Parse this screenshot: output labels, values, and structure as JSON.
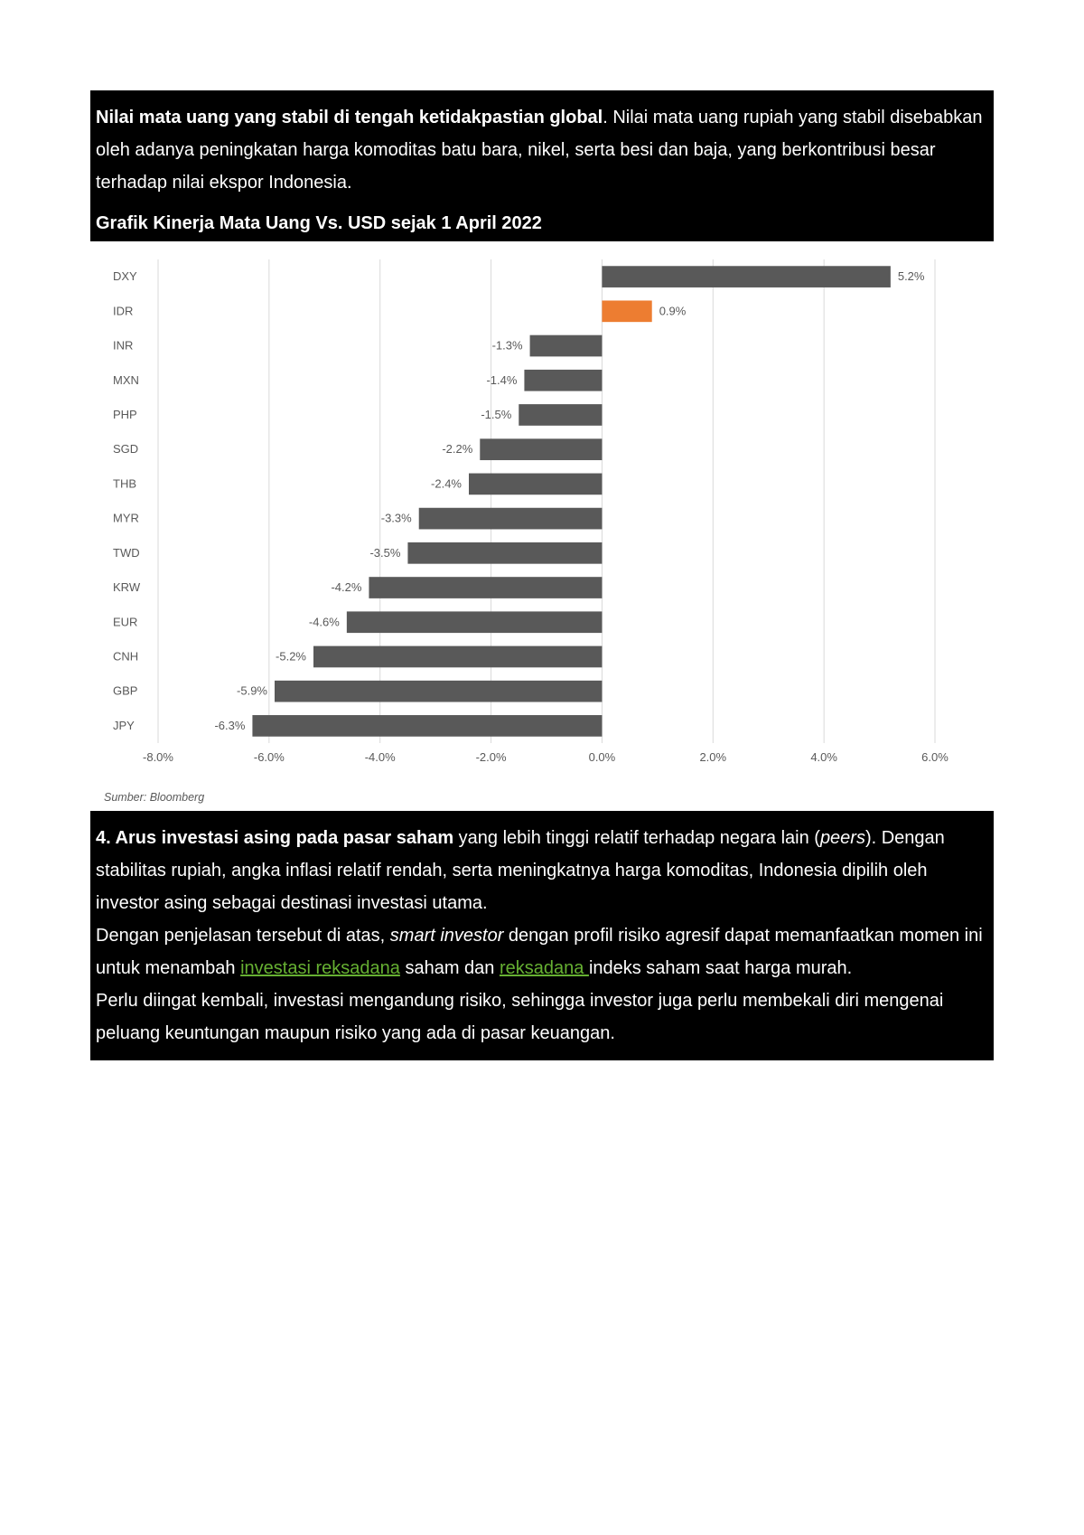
{
  "intro": {
    "bold_lead": " Nilai mata uang yang stabil di tengah ketidakpastian global",
    "rest": ".  Nilai mata uang rupiah yang stabil disebabkan oleh adanya peningkatan harga komoditas batu bara, nikel, serta besi dan baja, yang berkontribusi besar terhadap nilai ekspor Indonesia."
  },
  "chart_title": "Grafik Kinerja Mata Uang Vs. USD sejak 1 April 2022",
  "chart": {
    "type": "horizontal_bar",
    "x_min": -8.0,
    "x_max": 6.0,
    "x_tick_step": 2.0,
    "x_ticks": [
      -8.0,
      -6.0,
      -4.0,
      -2.0,
      0.0,
      2.0,
      4.0,
      6.0
    ],
    "x_tick_labels": [
      "-8.0%",
      "-6.0%",
      "-4.0%",
      "-2.0%",
      "0.0%",
      "2.0%",
      "4.0%",
      "6.0%"
    ],
    "bar_default_color": "#595959",
    "bar_highlight_color": "#ed7d31",
    "grid_color": "#d9d9d9",
    "background_color": "#ffffff",
    "label_fontsize": 13,
    "label_color": "#595959",
    "bar_height_ratio": 0.62,
    "series": [
      {
        "label": "DXY",
        "value": 5.2,
        "value_label": "5.2%",
        "color": "#595959"
      },
      {
        "label": "IDR",
        "value": 0.9,
        "value_label": "0.9%",
        "color": "#ed7d31"
      },
      {
        "label": "INR",
        "value": -1.3,
        "value_label": "-1.3%",
        "color": "#595959"
      },
      {
        "label": "MXN",
        "value": -1.4,
        "value_label": "-1.4%",
        "color": "#595959"
      },
      {
        "label": "PHP",
        "value": -1.5,
        "value_label": "-1.5%",
        "color": "#595959"
      },
      {
        "label": "SGD",
        "value": -2.2,
        "value_label": "-2.2%",
        "color": "#595959"
      },
      {
        "label": "THB",
        "value": -2.4,
        "value_label": "-2.4%",
        "color": "#595959"
      },
      {
        "label": "MYR",
        "value": -3.3,
        "value_label": "-3.3%",
        "color": "#595959"
      },
      {
        "label": "TWD",
        "value": -3.5,
        "value_label": "-3.5%",
        "color": "#595959"
      },
      {
        "label": "KRW",
        "value": -4.2,
        "value_label": "-4.2%",
        "color": "#595959"
      },
      {
        "label": "EUR",
        "value": -4.6,
        "value_label": "-4.6%",
        "color": "#595959"
      },
      {
        "label": "CNH",
        "value": -5.2,
        "value_label": "-5.2%",
        "color": "#595959"
      },
      {
        "label": "GBP",
        "value": -5.9,
        "value_label": "-5.9%",
        "color": "#595959"
      },
      {
        "label": "JPY",
        "value": -6.3,
        "value_label": "-6.3%",
        "color": "#595959"
      }
    ]
  },
  "source": "Sumber: Bloomberg",
  "body": {
    "p1_bold": "4. Arus investasi asing pada pasar saham",
    "p1_rest_a": " yang lebih tinggi relatif terhadap negara lain (",
    "p1_italic": "peers",
    "p1_rest_b": "). Dengan stabilitas rupiah, angka inflasi relatif rendah, serta meningkatnya harga komoditas, Indonesia dipilih oleh investor asing sebagai destinasi investasi utama.",
    "p2_a": "Dengan penjelasan tersebut di atas, ",
    "p2_italic": "smart investor",
    "p2_b": " dengan profil risiko agresif dapat memanfaatkan momen ini untuk menambah ",
    "p2_link1": "investasi reksadana",
    "p2_c": " saham dan ",
    "p2_link2": "reksadana ",
    "p2_d": "indeks saham saat harga murah.",
    "p3": "Perlu diingat kembali, investasi mengandung risiko, sehingga investor juga perlu membekali diri mengenai peluang keuntungan maupun risiko yang ada di pasar keuangan."
  }
}
